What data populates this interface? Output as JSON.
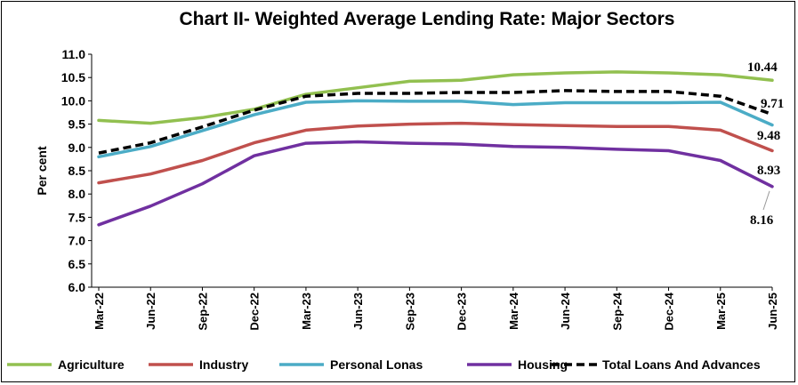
{
  "chart_data": {
    "type": "line",
    "title": "Chart II- Weighted Average Lending Rate: Major Sectors",
    "xlabel": "",
    "ylabel": "Per cent",
    "ylim": [
      6.0,
      11.0
    ],
    "yticks": [
      "6.0",
      "6.5",
      "7.0",
      "7.5",
      "8.0",
      "8.5",
      "9.0",
      "9.5",
      "10.0",
      "10.5",
      "11.0"
    ],
    "categories": [
      "Mar-22",
      "Jun-22",
      "Sep-22",
      "Dec-22",
      "Mar-23",
      "Jun-23",
      "Sep-23",
      "Dec-23",
      "Mar-24",
      "Jun-24",
      "Sep-24",
      "Dec-24",
      "Mar-25",
      "Jun-25"
    ],
    "grid": false,
    "legend": "bottom",
    "series": [
      {
        "name": "Agriculture",
        "color": "#92C050",
        "dash": false,
        "values": [
          9.58,
          9.52,
          9.64,
          9.82,
          10.14,
          10.28,
          10.42,
          10.44,
          10.56,
          10.6,
          10.62,
          10.6,
          10.56,
          10.44
        ],
        "end_label": "10.44"
      },
      {
        "name": "Industry",
        "color": "#C0504D",
        "dash": false,
        "values": [
          8.24,
          8.43,
          8.72,
          9.1,
          9.37,
          9.46,
          9.5,
          9.52,
          9.49,
          9.47,
          9.45,
          9.45,
          9.37,
          8.93
        ],
        "end_label": "8.93"
      },
      {
        "name": "Personal Lonas",
        "color": "#4BACC6",
        "dash": false,
        "values": [
          8.8,
          9.02,
          9.36,
          9.7,
          9.97,
          10.0,
          9.99,
          9.99,
          9.92,
          9.96,
          9.96,
          9.96,
          9.97,
          9.48
        ],
        "end_label": "9.48"
      },
      {
        "name": "Housing",
        "color": "#7030A0",
        "dash": false,
        "values": [
          7.34,
          7.74,
          8.22,
          8.82,
          9.09,
          9.12,
          9.09,
          9.07,
          9.02,
          9.0,
          8.96,
          8.93,
          8.72,
          8.16
        ],
        "end_label": "8.16"
      },
      {
        "name": "Total Loans And Advances",
        "color": "#000000",
        "dash": true,
        "values": [
          8.88,
          9.1,
          9.44,
          9.8,
          10.1,
          10.16,
          10.16,
          10.18,
          10.18,
          10.22,
          10.2,
          10.2,
          10.1,
          9.71
        ],
        "end_label": "9.71"
      }
    ]
  }
}
